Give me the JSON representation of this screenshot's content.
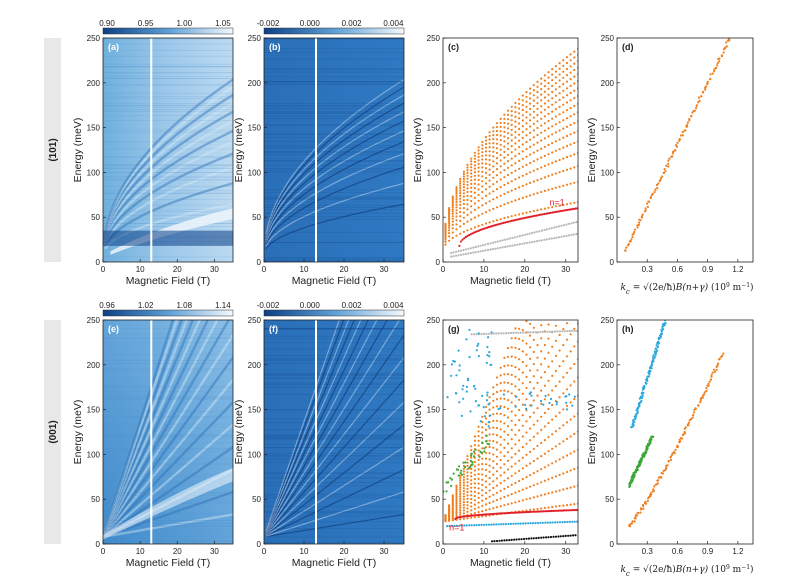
{
  "figure": {
    "row_labels": [
      "(101)",
      "(001)"
    ],
    "magnetic_field_label": "Magnetic Field (T)",
    "magnetic_field_label_lc": "Magnetic field (T)",
    "energy_label": "Energy (meV)",
    "k_label": "k_c = sqrt(2e/h B(n+γ)) (10^9 m^-1)",
    "k_label_parts": {
      "k": "k",
      "sub": "c",
      "eq": " = ",
      "frac": "2e/ħ",
      "rest": "B(n+γ)",
      "unit": "(10",
      "exp9": "9",
      "m": " m",
      "expm": "−1",
      "close": ")"
    },
    "n1_label": "n=1",
    "colorbar_a": [
      "0.90",
      "0.95",
      "1.00",
      "1.05"
    ],
    "colorbar_b": [
      "-0.002",
      "0.000",
      "0.002",
      "0.004"
    ],
    "colorbar_e": [
      "0.96",
      "1.02",
      "1.08",
      "1.14"
    ],
    "colorbar_f": [
      "-0.002",
      "0.000",
      "0.002",
      "0.004"
    ],
    "colors": {
      "orange": "#f07f1e",
      "blue": "#2aa8dc",
      "green": "#3aa834",
      "red": "#e0202a",
      "gray": "#b8b8b8",
      "black": "#111111",
      "map_dark": "#0d3f86",
      "map_light": "#eaf3fb"
    }
  },
  "chart_data": [
    {
      "panel": "(a)",
      "type": "heatmap",
      "xlabel": "Magnetic Field (T)",
      "ylabel": "Energy (meV)",
      "xlim": [
        0,
        35
      ],
      "ylim": [
        0,
        250
      ],
      "xticks": [
        0,
        10,
        20,
        30
      ],
      "yticks": [
        0,
        50,
        100,
        150,
        200,
        250
      ],
      "colorbar": [
        0.9,
        0.95,
        1.0,
        1.05
      ],
      "vertical_line_T": 13
    },
    {
      "panel": "(b)",
      "type": "heatmap",
      "xlabel": "Magnetic Field (T)",
      "ylabel": "Energy (meV)",
      "xlim": [
        0,
        35
      ],
      "ylim": [
        0,
        250
      ],
      "xticks": [
        0,
        10,
        20,
        30
      ],
      "yticks": [
        0,
        50,
        100,
        150,
        200,
        250
      ],
      "colorbar": [
        -0.002,
        0.0,
        0.002,
        0.004
      ],
      "vertical_line_T": 13
    },
    {
      "panel": "(c)",
      "type": "scatter",
      "xlabel": "Magnetic field (T)",
      "ylabel": "Energy (meV)",
      "xlim": [
        0,
        33
      ],
      "ylim": [
        0,
        250
      ],
      "xticks": [
        0,
        10,
        20,
        30
      ],
      "yticks": [
        0,
        50,
        100,
        150,
        200,
        250
      ],
      "annotation": "n=1",
      "series": [
        {
          "color": "orange",
          "kind": "landau_fan",
          "x_max": 33,
          "base_meV": 12,
          "slope_meV_per_sqrtT": 10.6,
          "n": [
            1,
            2,
            3,
            4,
            5,
            6,
            7,
            8,
            9,
            10,
            11,
            12,
            13,
            14,
            15,
            16,
            17
          ]
        },
        {
          "color": "red",
          "kind": "n1_branch",
          "x": [
            4,
            33
          ],
          "y": [
            18,
            60
          ]
        },
        {
          "color": "gray",
          "kind": "secondary",
          "x": [
            2,
            33
          ],
          "y": [
            10,
            45
          ]
        }
      ]
    },
    {
      "panel": "(d)",
      "type": "scatter",
      "xlabel": "k_c (10^9 m^-1)",
      "ylabel": "Energy (meV)",
      "xlim": [
        0,
        1.35
      ],
      "ylim": [
        0,
        250
      ],
      "xticks": [
        0.3,
        0.6,
        0.9,
        1.2
      ],
      "yticks": [
        0,
        50,
        100,
        150,
        200,
        250
      ],
      "series": [
        {
          "color": "orange",
          "x": [
            0.08,
            1.12
          ],
          "y": [
            12,
            250
          ]
        }
      ]
    },
    {
      "panel": "(e)",
      "type": "heatmap",
      "xlabel": "Magnetic Field (T)",
      "ylabel": "Energy (meV)",
      "xlim": [
        0,
        35
      ],
      "ylim": [
        0,
        250
      ],
      "xticks": [
        0,
        10,
        20,
        30
      ],
      "yticks": [
        0,
        50,
        100,
        150,
        200,
        250
      ],
      "colorbar": [
        0.96,
        1.02,
        1.08,
        1.14
      ],
      "vertical_line_T": 13
    },
    {
      "panel": "(f)",
      "type": "heatmap",
      "xlabel": "Magnetic Field (T)",
      "ylabel": "Energy (meV)",
      "xlim": [
        0,
        35
      ],
      "ylim": [
        0,
        250
      ],
      "xticks": [
        0,
        10,
        20,
        30
      ],
      "yticks": [
        0,
        50,
        100,
        150,
        200,
        250
      ],
      "colorbar": [
        -0.002,
        0.0,
        0.002,
        0.004
      ],
      "vertical_line_T": 13
    },
    {
      "panel": "(g)",
      "type": "scatter",
      "xlabel": "Magnetic field (T)",
      "ylabel": "Energy (meV)",
      "xlim": [
        0,
        33
      ],
      "ylim": [
        0,
        250
      ],
      "xticks": [
        0,
        10,
        20,
        30
      ],
      "yticks": [
        0,
        50,
        100,
        150,
        200,
        250
      ],
      "annotation": "n=1",
      "series": [
        {
          "color": "orange",
          "kind": "landau_fan",
          "x_max": 33,
          "base_meV": 25,
          "slope_meV_per_T": 1.45,
          "n": [
            1,
            2,
            3,
            4,
            5,
            6,
            7,
            8,
            9,
            10,
            11,
            12,
            13,
            14,
            15,
            16,
            17,
            18,
            19,
            20
          ]
        },
        {
          "color": "red",
          "kind": "n1_branch",
          "x": [
            3,
            33
          ],
          "y": [
            28,
            38
          ]
        },
        {
          "color": "blue",
          "kind": "branches",
          "x": [
            1,
            33
          ],
          "y": [
            20,
            25
          ]
        },
        {
          "color": "black",
          "kind": "lowest",
          "x": [
            12,
            33
          ],
          "y": [
            3,
            10
          ]
        },
        {
          "color": "gray",
          "kind": "flat",
          "x": [
            7,
            33
          ],
          "y": [
            234,
            238
          ]
        },
        {
          "color": "green",
          "kind": "mid",
          "x": [
            0,
            12
          ],
          "y": [
            60,
            120
          ]
        }
      ]
    },
    {
      "panel": "(h)",
      "type": "scatter",
      "xlabel": "k_c (10^9 m^-1)",
      "ylabel": "Energy (meV)",
      "xlim": [
        0,
        1.35
      ],
      "ylim": [
        0,
        250
      ],
      "xticks": [
        0.3,
        0.6,
        0.9,
        1.2
      ],
      "yticks": [
        0,
        50,
        100,
        150,
        200,
        250
      ],
      "series": [
        {
          "color": "orange",
          "x": [
            0.12,
            1.05
          ],
          "y": [
            20,
            212
          ]
        },
        {
          "color": "blue",
          "x": [
            0.15,
            0.48
          ],
          "y": [
            130,
            250
          ]
        },
        {
          "color": "green",
          "x": [
            0.12,
            0.35
          ],
          "y": [
            65,
            120
          ]
        }
      ]
    }
  ]
}
